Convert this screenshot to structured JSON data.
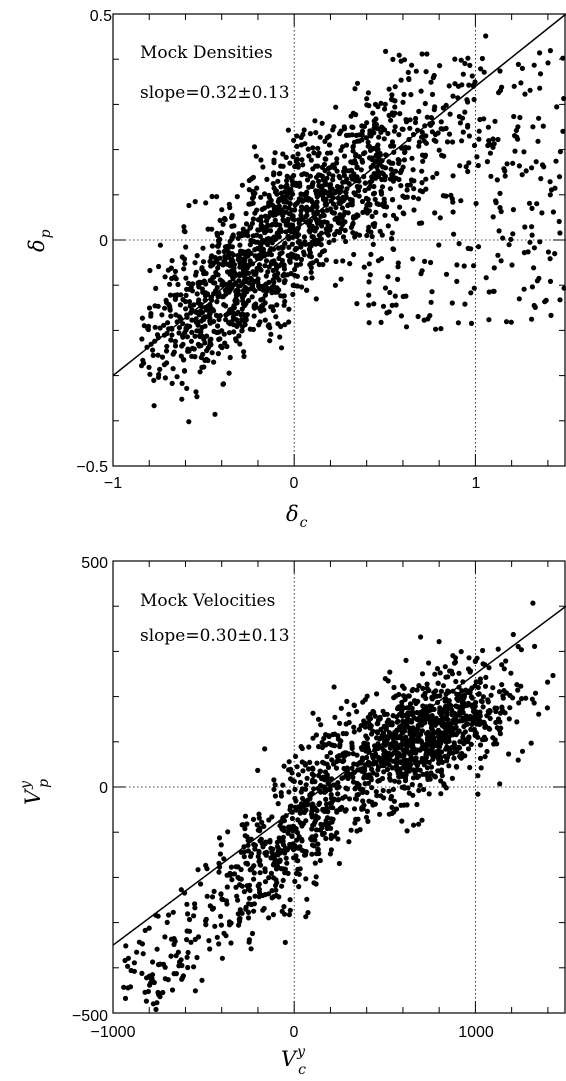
{
  "chart_data": [
    {
      "type": "scatter",
      "annotation_title": "Mock Densities",
      "annotation_slope": "slope=0.32±0.13",
      "xlabel_main": "δ",
      "xlabel_sub": "c",
      "ylabel_main": "δ",
      "ylabel_sub": "p",
      "xlim": [
        -1,
        1.5
      ],
      "ylim": [
        -0.5,
        0.5
      ],
      "xticks": [
        -1,
        0,
        1
      ],
      "xtick_labels": [
        "−1",
        "0",
        "1"
      ],
      "yticks": [
        -0.5,
        0,
        0.5
      ],
      "ytick_labels": [
        "−0.5",
        "0",
        "0.5"
      ],
      "grid": "dotted zero lines at x=0, x=1 and y=0",
      "fit_line": {
        "slope": 0.32,
        "intercept": 0.02
      },
      "point_count_approx": 1800,
      "seed": 7
    },
    {
      "type": "scatter",
      "annotation_title": "Mock Velocities",
      "annotation_slope": "slope=0.30±0.13",
      "xlabel_main": "V",
      "xlabel_sup": "y",
      "xlabel_sub": "c",
      "ylabel_main": "V",
      "ylabel_sup": "y",
      "ylabel_sub": "p",
      "xlim": [
        -1000,
        1500
      ],
      "ylim": [
        -500,
        500
      ],
      "xticks": [
        -1000,
        0,
        1000
      ],
      "xtick_labels": [
        "−1000",
        "0",
        "1000"
      ],
      "yticks": [
        -500,
        0,
        500
      ],
      "ytick_labels": [
        "−500",
        "0",
        "500"
      ],
      "grid": "dotted zero lines at x=0, x=1000 and y=0",
      "fit_line": {
        "slope": 0.3,
        "intercept": -50
      },
      "point_count_approx": 1600,
      "seed": 11
    }
  ]
}
